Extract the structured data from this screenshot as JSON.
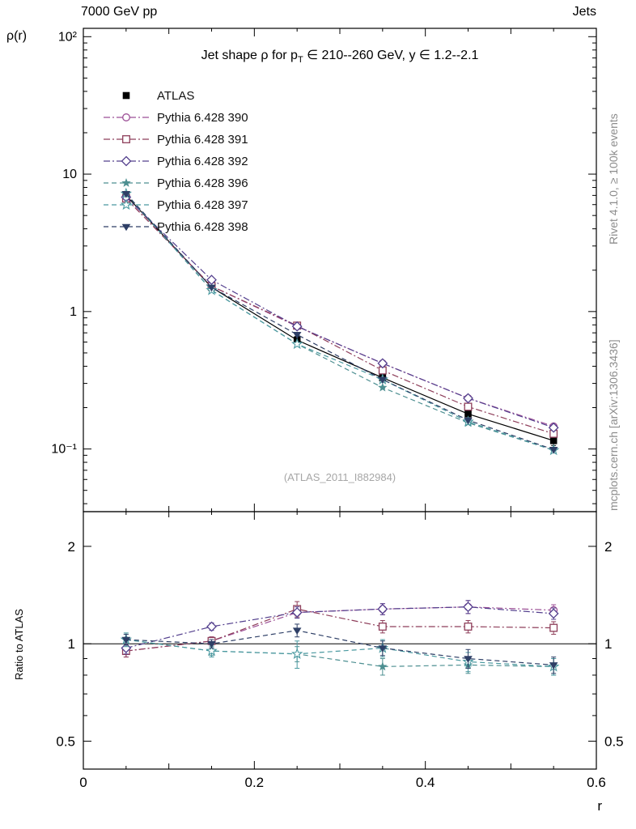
{
  "header": {
    "left": "7000 GeV pp",
    "right": "Jets"
  },
  "title": {
    "prefix": "Jet shape ρ for p",
    "sub": "T",
    "suffix": " ∈ 210--260 GeV, y ∈ 1.2--2.1"
  },
  "labels": {
    "y_main": "ρ(r)",
    "y_ratio": "Ratio to ATLAS",
    "x": "r",
    "watermark": "(ATLAS_2011_I882984)"
  },
  "side_notes": {
    "top": "Rivet 4.1.0, ≥ 100k events",
    "bottom": "mcplots.cern.ch [arXiv:1306.3436]"
  },
  "chart_data": [
    {
      "type": "line",
      "panel": "main",
      "title": "Jet shape ρ for pT ∈ 210--260 GeV, y ∈ 1.2--2.1",
      "xlabel": "r",
      "ylabel": "ρ(r)",
      "xlim": [
        0,
        0.6
      ],
      "ylim": [
        0.035,
        115
      ],
      "ylog": true,
      "xticks": [
        {
          "v": 0,
          "label": "0"
        },
        {
          "v": 0.2,
          "label": "0.2"
        },
        {
          "v": 0.4,
          "label": "0.4"
        },
        {
          "v": 0.6,
          "label": "0.6"
        }
      ],
      "yticks": [
        {
          "v": 100,
          "label": "10²"
        },
        {
          "v": 10,
          "label": "10"
        },
        {
          "v": 1,
          "label": "1"
        },
        {
          "v": 0.1,
          "label": "10⁻¹"
        }
      ],
      "x": [
        0.05,
        0.15,
        0.25,
        0.35,
        0.45,
        0.55
      ],
      "series": [
        {
          "name": "ATLAS",
          "color": "#000000",
          "line": "solid",
          "marker": "square-filled",
          "values": [
            7.0,
            1.5,
            0.62,
            0.33,
            0.18,
            0.115
          ],
          "errors": [
            0.45,
            0.09,
            0.04,
            0.022,
            0.013,
            0.009
          ]
        },
        {
          "name": "Pythia 6.428 390",
          "color": "#9c4f96",
          "line": "dashdot",
          "marker": "circle-open",
          "values": [
            6.65,
            1.53,
            0.78,
            0.42,
            0.234,
            0.146
          ]
        },
        {
          "name": "Pythia 6.428 391",
          "color": "#8e3e5a",
          "line": "dashdot",
          "marker": "square-open",
          "values": [
            6.65,
            1.53,
            0.79,
            0.373,
            0.203,
            0.129
          ]
        },
        {
          "name": "Pythia 6.428 392",
          "color": "#54408e",
          "line": "dashdot",
          "marker": "diamond-open",
          "values": [
            6.8,
            1.7,
            0.78,
            0.42,
            0.234,
            0.143
          ]
        },
        {
          "name": "Pythia 6.428 396",
          "color": "#4d8f91",
          "line": "dashed",
          "marker": "star-filled",
          "values": [
            7.2,
            1.43,
            0.58,
            0.28,
            0.155,
            0.098
          ]
        },
        {
          "name": "Pythia 6.428 397",
          "color": "#4a99a0",
          "line": "dashed",
          "marker": "star-open",
          "values": [
            7.2,
            1.43,
            0.58,
            0.32,
            0.158,
            0.098
          ]
        },
        {
          "name": "Pythia 6.428 398",
          "color": "#2e3f66",
          "line": "dashed",
          "marker": "triangle-down-filled",
          "values": [
            7.2,
            1.5,
            0.68,
            0.32,
            0.162,
            0.099
          ]
        }
      ]
    },
    {
      "type": "ratio",
      "panel": "ratio",
      "ylabel": "Ratio to ATLAS",
      "reference": 1,
      "ylog": true,
      "ylim": [
        0.41,
        2.56
      ],
      "yticks": [
        {
          "v": 2,
          "label": "2"
        },
        {
          "v": 1,
          "label": "1"
        },
        {
          "v": 0.5,
          "label": "0.5"
        }
      ],
      "yminors": [
        0.6,
        0.7,
        0.8,
        0.9
      ],
      "x": [
        0.05,
        0.15,
        0.25,
        0.35,
        0.45,
        0.55
      ],
      "series": [
        {
          "name": "Pythia 6.428 390",
          "color": "#9c4f96",
          "line": "dashdot",
          "marker": "circle-open",
          "values": [
            0.95,
            1.02,
            1.25,
            1.28,
            1.3,
            1.27
          ],
          "errors": [
            0.04,
            0.03,
            0.05,
            0.05,
            0.06,
            0.05
          ]
        },
        {
          "name": "Pythia 6.428 391",
          "color": "#8e3e5a",
          "line": "dashdot",
          "marker": "square-open",
          "values": [
            0.95,
            1.02,
            1.28,
            1.13,
            1.13,
            1.12
          ],
          "errors": [
            0.04,
            0.03,
            0.07,
            0.05,
            0.05,
            0.05
          ]
        },
        {
          "name": "Pythia 6.428 392",
          "color": "#54408e",
          "line": "dashdot",
          "marker": "diamond-open",
          "values": [
            0.97,
            1.13,
            1.25,
            1.28,
            1.3,
            1.24
          ],
          "errors": [
            0.04,
            0.03,
            0.05,
            0.05,
            0.06,
            0.05
          ]
        },
        {
          "name": "Pythia 6.428 396",
          "color": "#4d8f91",
          "line": "dashed",
          "marker": "star-filled",
          "values": [
            1.03,
            0.95,
            0.93,
            0.85,
            0.86,
            0.85
          ],
          "errors": [
            0.04,
            0.03,
            0.05,
            0.05,
            0.05,
            0.05
          ]
        },
        {
          "name": "Pythia 6.428 397",
          "color": "#4a99a0",
          "line": "dashed",
          "marker": "star-open",
          "values": [
            1.03,
            0.95,
            0.93,
            0.97,
            0.88,
            0.85
          ],
          "errors": [
            0.05,
            0.04,
            0.09,
            0.06,
            0.06,
            0.05
          ]
        },
        {
          "name": "Pythia 6.428 398",
          "color": "#2e3f66",
          "line": "dashed",
          "marker": "triangle-down-filled",
          "values": [
            1.03,
            1.0,
            1.1,
            0.97,
            0.9,
            0.86
          ],
          "errors": [
            0.04,
            0.03,
            0.05,
            0.05,
            0.06,
            0.05
          ]
        }
      ]
    }
  ]
}
